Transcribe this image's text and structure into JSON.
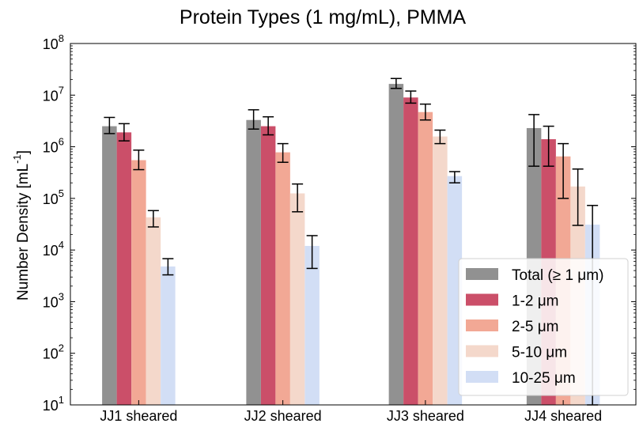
{
  "chart_data": {
    "type": "bar",
    "title": "Protein Types (1 mg/mL), PMMA",
    "xlabel": "",
    "ylabel": "Number Density [mL",
    "ylabel_superscript": "-1",
    "ylabel_suffix": "]",
    "yscale": "log",
    "ylim": [
      10,
      100000000
    ],
    "yticks": [
      {
        "value": 10,
        "base": "10",
        "exp": "1"
      },
      {
        "value": 100,
        "base": "10",
        "exp": "2"
      },
      {
        "value": 1000,
        "base": "10",
        "exp": "3"
      },
      {
        "value": 10000,
        "base": "10",
        "exp": "4"
      },
      {
        "value": 100000,
        "base": "10",
        "exp": "5"
      },
      {
        "value": 1000000,
        "base": "10",
        "exp": "6"
      },
      {
        "value": 10000000,
        "base": "10",
        "exp": "7"
      },
      {
        "value": 100000000,
        "base": "10",
        "exp": "8"
      }
    ],
    "categories": [
      "JJ1 sheared",
      "JJ2 sheared",
      "JJ3 sheared",
      "JJ4 sheared"
    ],
    "legend_position": "lower-right",
    "grid": false,
    "series": [
      {
        "name": "Total (≥  1 μm)",
        "color": "#919191",
        "values": [
          2500000,
          3300000,
          16500000,
          2300000
        ],
        "err_low": [
          1800000,
          2200000,
          13500000,
          420000
        ],
        "err_high": [
          3700000,
          5200000,
          21000000,
          4200000
        ]
      },
      {
        "name": "1-2 μm",
        "color": "#cb4f69",
        "values": [
          1900000,
          2500000,
          9000000,
          1400000
        ],
        "err_low": [
          1300000,
          1700000,
          7000000,
          420000
        ],
        "err_high": [
          2800000,
          3800000,
          12000000,
          2500000
        ]
      },
      {
        "name": "2-5 μm",
        "color": "#f2a895",
        "values": [
          550000,
          780000,
          4700000,
          650000
        ],
        "err_low": [
          360000,
          500000,
          3300000,
          100000
        ],
        "err_high": [
          860000,
          1150000,
          6700000,
          1150000
        ]
      },
      {
        "name": "5-10 μm",
        "color": "#f4d8cb",
        "values": [
          43000,
          125000,
          1580000,
          170000
        ],
        "err_low": [
          28000,
          55000,
          1150000,
          30000
        ],
        "err_high": [
          58000,
          190000,
          2100000,
          370000
        ]
      },
      {
        "name": "10-25 μm",
        "color": "#d2def5",
        "values": [
          4800,
          12000,
          270000,
          31000
        ],
        "err_low": [
          3300,
          4400,
          200000,
          10
        ],
        "err_high": [
          6800,
          19000,
          330000,
          73000
        ]
      }
    ]
  }
}
